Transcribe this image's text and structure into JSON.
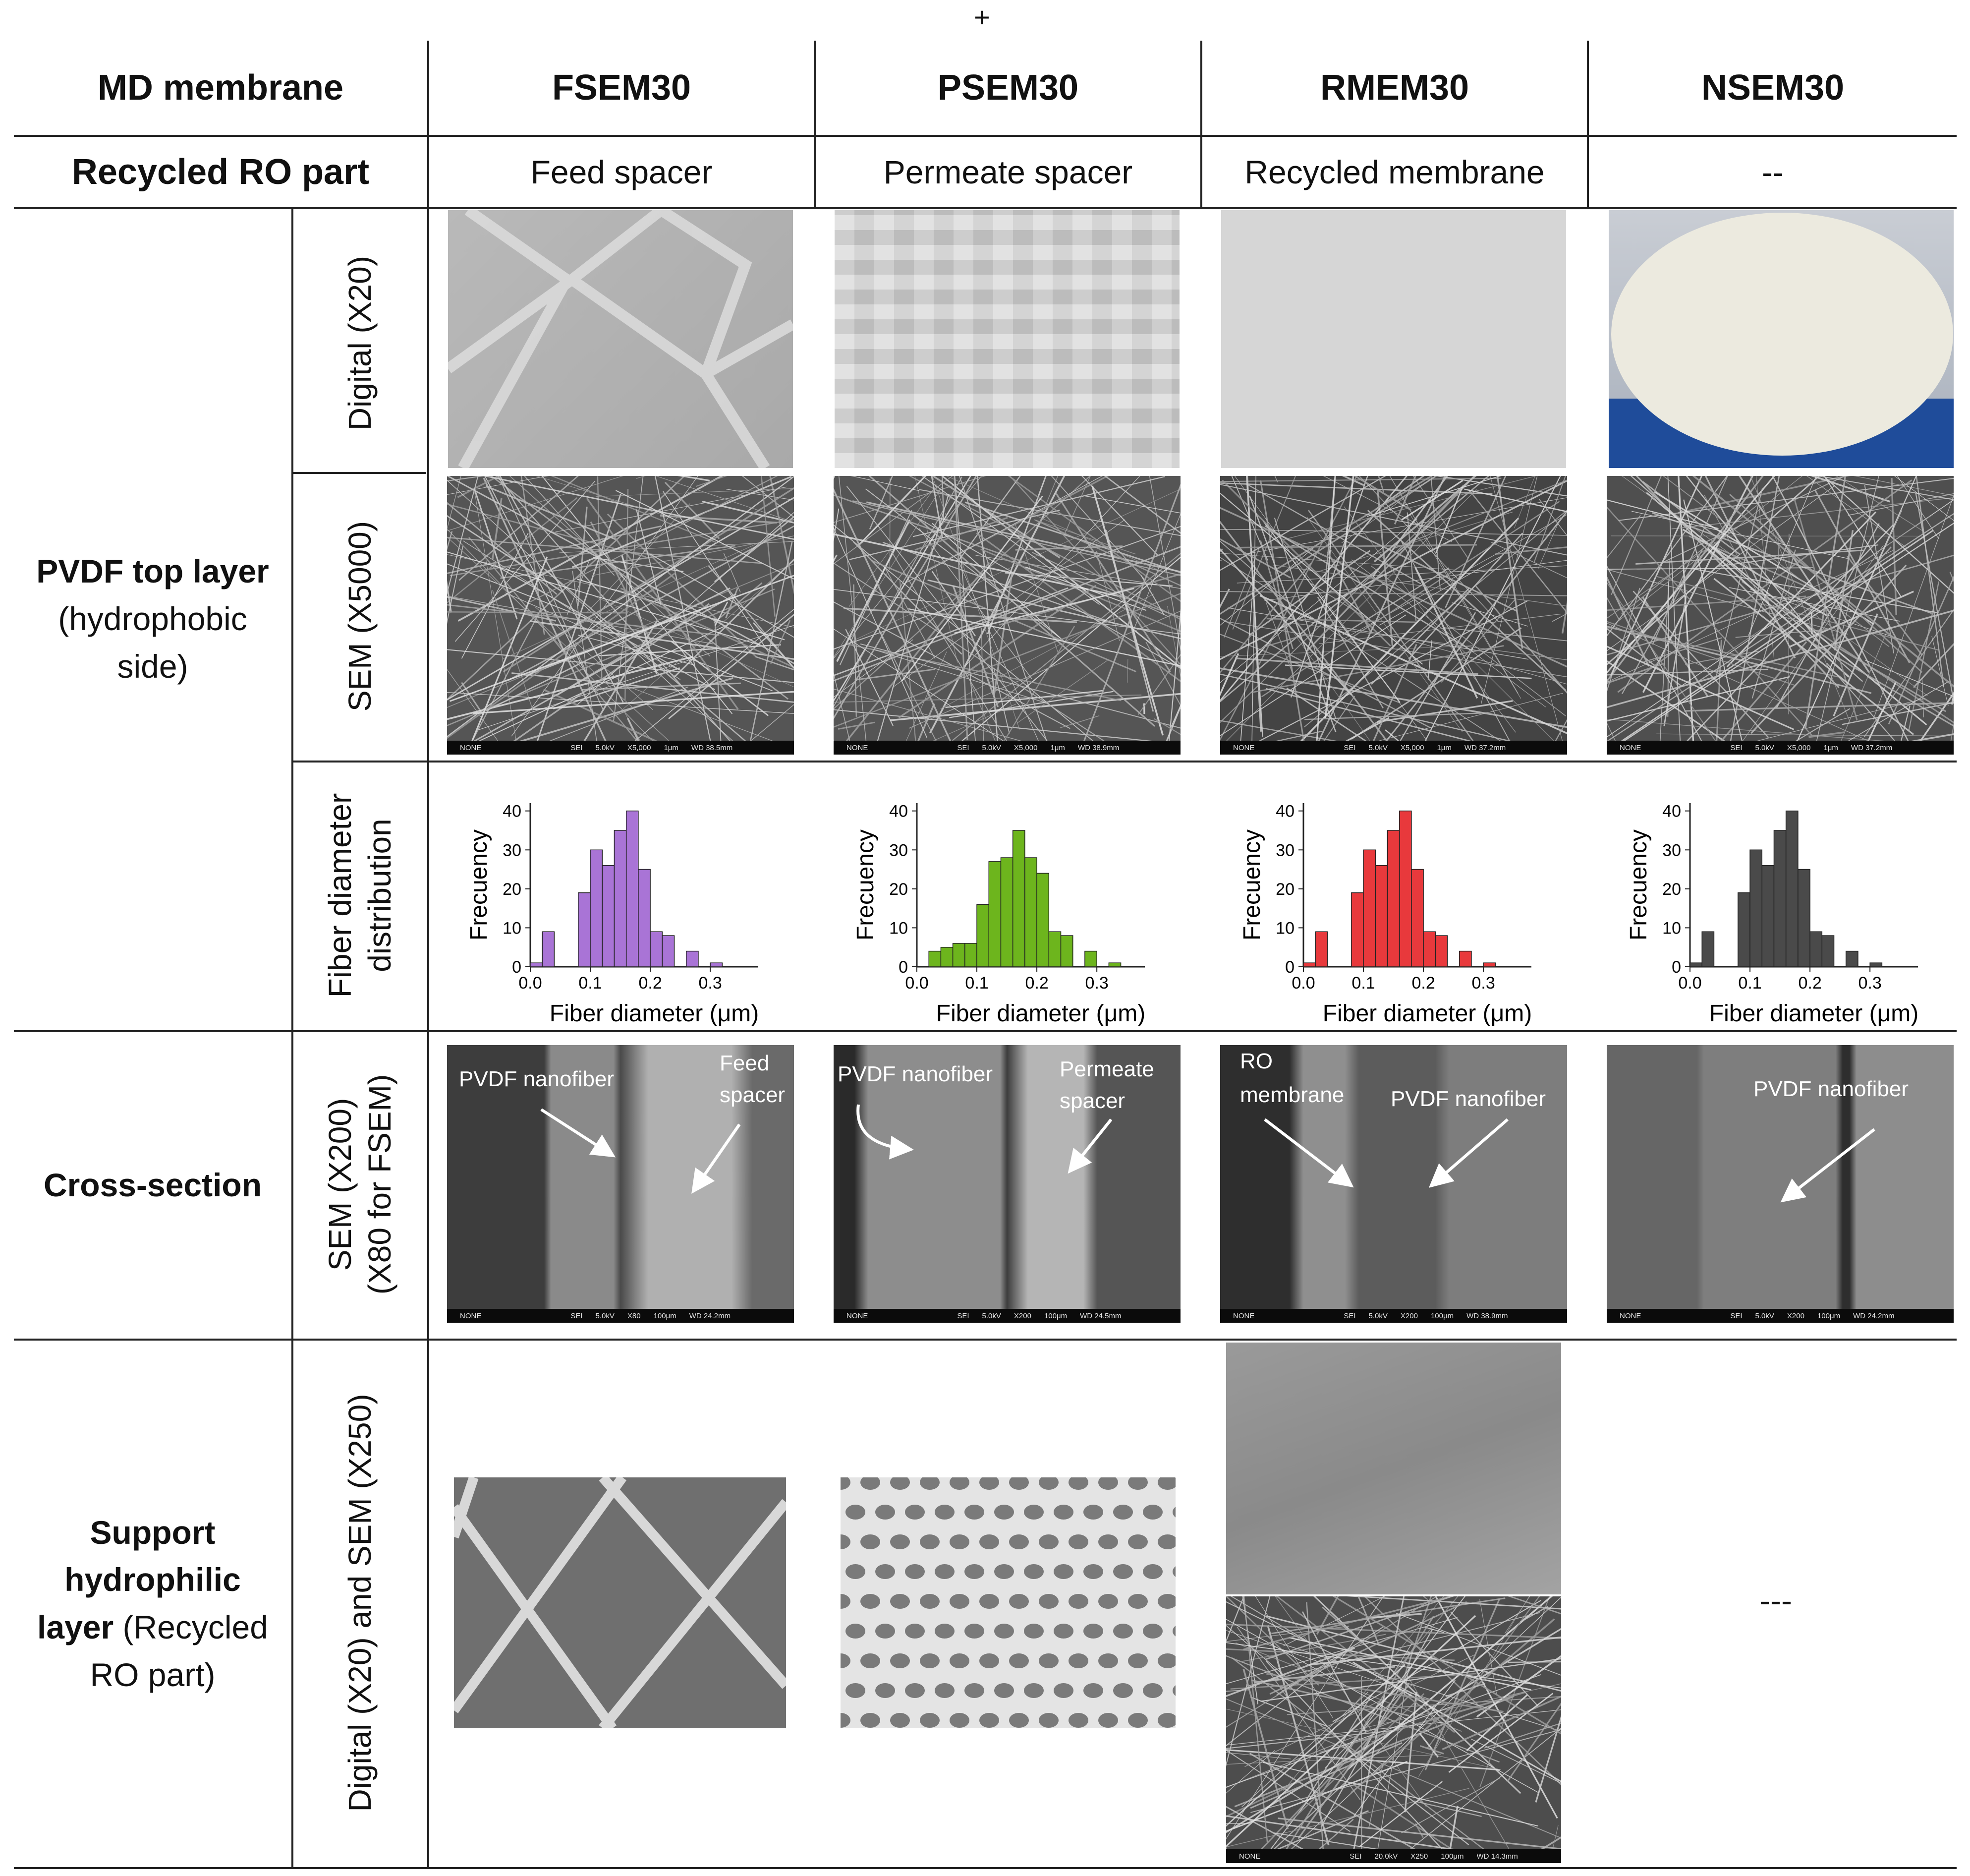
{
  "top_mark": "+",
  "header": {
    "col0": "MD membrane",
    "columns": [
      "FSEM30",
      "PSEM30",
      "RMEM30",
      "NSEM30"
    ]
  },
  "recycled_row": {
    "label": "Recycled RO part",
    "values": [
      "Feed spacer",
      "Permeate spacer",
      "Recycled membrane",
      "--"
    ]
  },
  "sections": {
    "pvdf": {
      "title": "PVDF top layer",
      "sub": "(hydrophobic",
      "sub2": "side)"
    },
    "cross": {
      "title": "Cross-section"
    },
    "support": {
      "t1": "Support",
      "t2": "hydrophilic",
      "t3": "layer",
      "t3b": " (Recycled",
      "t4": "RO part)"
    }
  },
  "sublabels": {
    "digital": "Digital (X20)",
    "sem": "SEM (X5000)",
    "fiber1": "Fiber diameter",
    "fiber2": "distribution",
    "cs1": "SEM (X200)",
    "cs2": "(X80 for FSEM)",
    "support": "Digital (X20) and SEM (X250)"
  },
  "sem_bars": [
    [
      "NONE",
      "SEI",
      "5.0kV",
      "X5,000",
      "1μm",
      "WD 38.5mm"
    ],
    [
      "NONE",
      "SEI",
      "5.0kV",
      "X5,000",
      "1μm",
      "WD 38.9mm"
    ],
    [
      "NONE",
      "SEI",
      "5.0kV",
      "X5,000",
      "1μm",
      "WD 37.2mm"
    ],
    [
      "NONE",
      "SEI",
      "5.0kV",
      "X5,000",
      "1μm",
      "WD 37.2mm"
    ]
  ],
  "cs_bars": [
    [
      "NONE",
      "SEI",
      "5.0kV",
      "X80",
      "100μm",
      "WD 24.2mm"
    ],
    [
      "NONE",
      "SEI",
      "5.0kV",
      "X200",
      "100μm",
      "WD 24.5mm"
    ],
    [
      "NONE",
      "SEI",
      "5.0kV",
      "X200",
      "100μm",
      "WD 38.9mm"
    ],
    [
      "NONE",
      "SEI",
      "5.0kV",
      "X200",
      "100μm",
      "WD 24.2mm"
    ]
  ],
  "support_bar": [
    "NONE",
    "SEI",
    "20.0kV",
    "X250",
    "100μm",
    "WD 14.3mm"
  ],
  "annotations": {
    "fsem": [
      "PVDF nanofiber",
      "Feed",
      "spacer"
    ],
    "psem": [
      "PVDF nanofiber",
      "Permeate",
      "spacer"
    ],
    "rmem": [
      "RO",
      "membrane",
      "PVDF nanofiber"
    ],
    "nsem": [
      "PVDF nanofiber"
    ]
  },
  "support_empty": "---",
  "colors": {
    "FSEM30": "#a974d6",
    "PSEM30": "#6db51d",
    "RMEM30": "#e8393c",
    "NSEM30": "#4a4a4a"
  },
  "chart_data": [
    {
      "type": "bar",
      "series_name": "FSEM30",
      "categories": [
        0.01,
        0.03,
        0.05,
        0.07,
        0.09,
        0.11,
        0.13,
        0.15,
        0.17,
        0.19,
        0.21,
        0.23,
        0.25,
        0.27,
        0.29,
        0.31,
        0.33
      ],
      "values": [
        1,
        9,
        0,
        0,
        19,
        30,
        26,
        35,
        40,
        25,
        9,
        8,
        0,
        4,
        0,
        1,
        0
      ],
      "xlabel": "Fiber diameter (μm)",
      "ylabel": "Frecuency",
      "xticks": [
        "0.0",
        "0.1",
        "0.2",
        "0.3"
      ],
      "yticks": [
        "0",
        "10",
        "20",
        "30",
        "40"
      ],
      "xlim": [
        0,
        0.38
      ],
      "ylim": [
        0,
        42
      ]
    },
    {
      "type": "bar",
      "series_name": "PSEM30",
      "categories": [
        0.01,
        0.03,
        0.05,
        0.07,
        0.09,
        0.11,
        0.13,
        0.15,
        0.17,
        0.19,
        0.21,
        0.23,
        0.25,
        0.27,
        0.29,
        0.31,
        0.33
      ],
      "values": [
        0,
        4,
        5,
        6,
        6,
        16,
        27,
        28,
        35,
        28,
        24,
        9,
        8,
        0,
        4,
        0,
        1
      ],
      "xlabel": "Fiber diameter (μm)",
      "ylabel": "Frecuency",
      "xticks": [
        "0.0",
        "0.1",
        "0.2",
        "0.3"
      ],
      "yticks": [
        "0",
        "10",
        "20",
        "30",
        "40"
      ],
      "xlim": [
        0,
        0.38
      ],
      "ylim": [
        0,
        42
      ]
    },
    {
      "type": "bar",
      "series_name": "RMEM30",
      "categories": [
        0.01,
        0.03,
        0.05,
        0.07,
        0.09,
        0.11,
        0.13,
        0.15,
        0.17,
        0.19,
        0.21,
        0.23,
        0.25,
        0.27,
        0.29,
        0.31,
        0.33
      ],
      "values": [
        1,
        9,
        0,
        0,
        19,
        30,
        26,
        35,
        40,
        25,
        9,
        8,
        0,
        4,
        0,
        1,
        0
      ],
      "xlabel": "Fiber diameter (μm)",
      "ylabel": "Frecuency",
      "xticks": [
        "0.0",
        "0.1",
        "0.2",
        "0.3"
      ],
      "yticks": [
        "0",
        "10",
        "20",
        "30",
        "40"
      ],
      "xlim": [
        0,
        0.38
      ],
      "ylim": [
        0,
        42
      ]
    },
    {
      "type": "bar",
      "series_name": "NSEM30",
      "categories": [
        0.01,
        0.03,
        0.05,
        0.07,
        0.09,
        0.11,
        0.13,
        0.15,
        0.17,
        0.19,
        0.21,
        0.23,
        0.25,
        0.27,
        0.29,
        0.31,
        0.33
      ],
      "values": [
        1,
        9,
        0,
        0,
        19,
        30,
        26,
        35,
        40,
        25,
        9,
        8,
        0,
        4,
        0,
        1,
        0
      ],
      "xlabel": "Fiber diameter (μm)",
      "ylabel": "Frecuency",
      "xticks": [
        "0.0",
        "0.1",
        "0.2",
        "0.3"
      ],
      "yticks": [
        "0",
        "10",
        "20",
        "30",
        "40"
      ],
      "xlim": [
        0,
        0.38
      ],
      "ylim": [
        0,
        42
      ]
    }
  ]
}
